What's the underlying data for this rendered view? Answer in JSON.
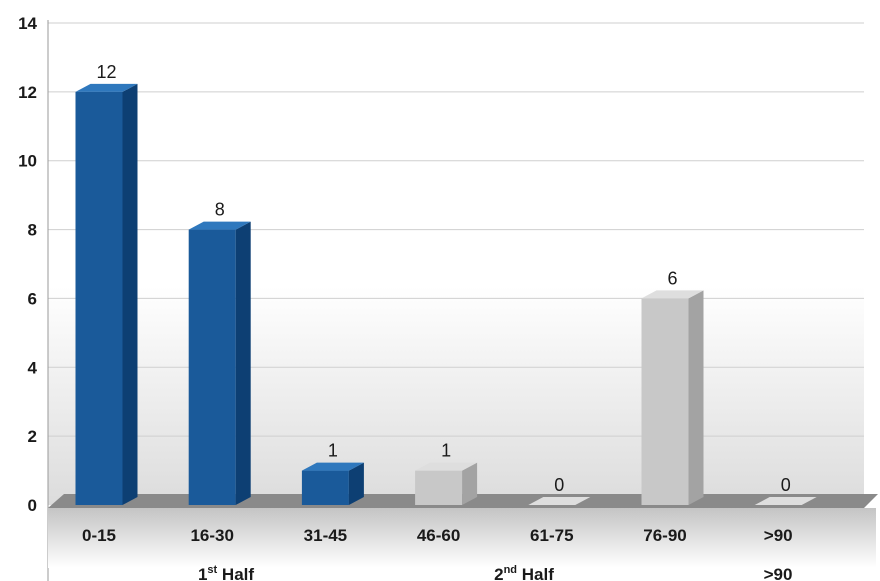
{
  "chart_data": {
    "type": "bar",
    "categories": [
      "0-15",
      "16-30",
      "31-45",
      "46-60",
      "61-75",
      "76-90",
      ">90"
    ],
    "values": [
      12,
      8,
      1,
      1,
      0,
      6,
      0
    ],
    "data_labels": [
      "12",
      "8",
      "1",
      "1",
      "0",
      "6",
      "0"
    ],
    "y_ticks": [
      "0",
      "2",
      "4",
      "6",
      "8",
      "10",
      "12",
      "14"
    ],
    "ylim": [
      0,
      14
    ],
    "grid": true,
    "groups": [
      {
        "base": "1",
        "sup": "st",
        "rest": " Half"
      },
      {
        "base": "2",
        "sup": "nd",
        "rest": " Half"
      },
      {
        "base": ">90",
        "sup": "",
        "rest": ""
      }
    ],
    "colors": {
      "first_half": "#1a5a9a",
      "first_half_side": "#0d3f73",
      "first_half_top": "#2f78bd",
      "second_half": "#c8c8c8",
      "second_half_side": "#a3a3a3",
      "second_half_top": "#dedede",
      "floor": "#8a8a8a",
      "grid": "#cfcfcf"
    },
    "bar_color_keys": [
      "first_half",
      "first_half",
      "first_half",
      "second_half",
      "second_half",
      "second_half",
      "second_half"
    ]
  }
}
